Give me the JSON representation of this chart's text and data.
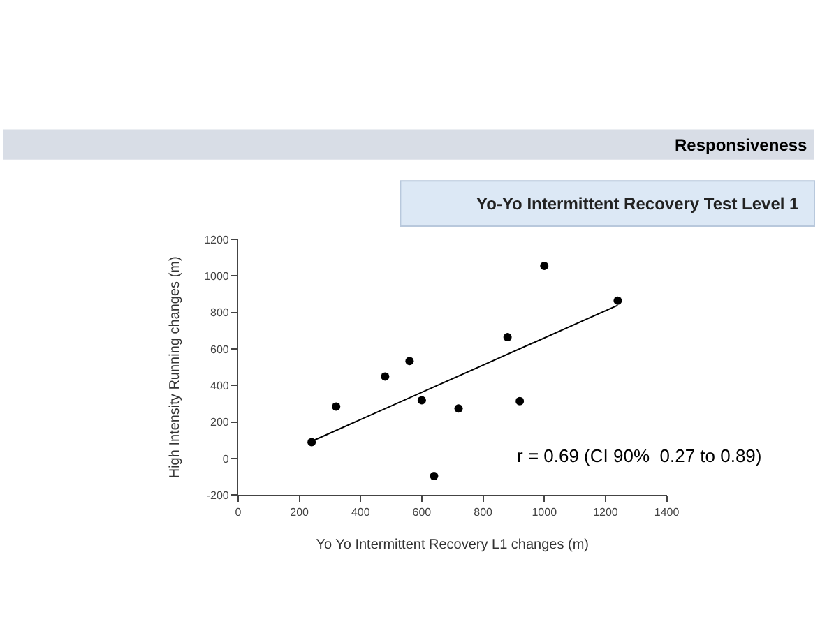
{
  "chart_data": {
    "type": "scatter",
    "title": "Responsiveness",
    "subtitle": "Yo-Yo Intermittent Recovery Test Level 1",
    "xlabel": "Yo Yo Intermittent Recovery L1 changes (m)",
    "ylabel": "High Intensity Running changes (m)",
    "annotations": [
      "r = 0.69 (CI 90%  0.27 to 0.89)"
    ],
    "xlim": [
      0,
      1400
    ],
    "xticks": [
      0,
      200,
      400,
      600,
      800,
      1000,
      1200,
      1400
    ],
    "ylim": [
      -200,
      1200
    ],
    "yticks": [
      -200,
      0,
      200,
      400,
      600,
      800,
      1000,
      1200
    ],
    "series": [
      {
        "color": "#000000",
        "marker": "circle",
        "x": [
          240,
          320,
          480,
          560,
          600,
          640,
          720,
          880,
          920,
          1000,
          1240
        ],
        "values": [
          90,
          285,
          450,
          535,
          320,
          -95,
          275,
          665,
          315,
          1055,
          865
        ]
      },
      {
        "type": "line",
        "marker": "none",
        "color": "#000000",
        "x": [
          240,
          1240
        ],
        "values": [
          95,
          840
        ]
      }
    ]
  }
}
